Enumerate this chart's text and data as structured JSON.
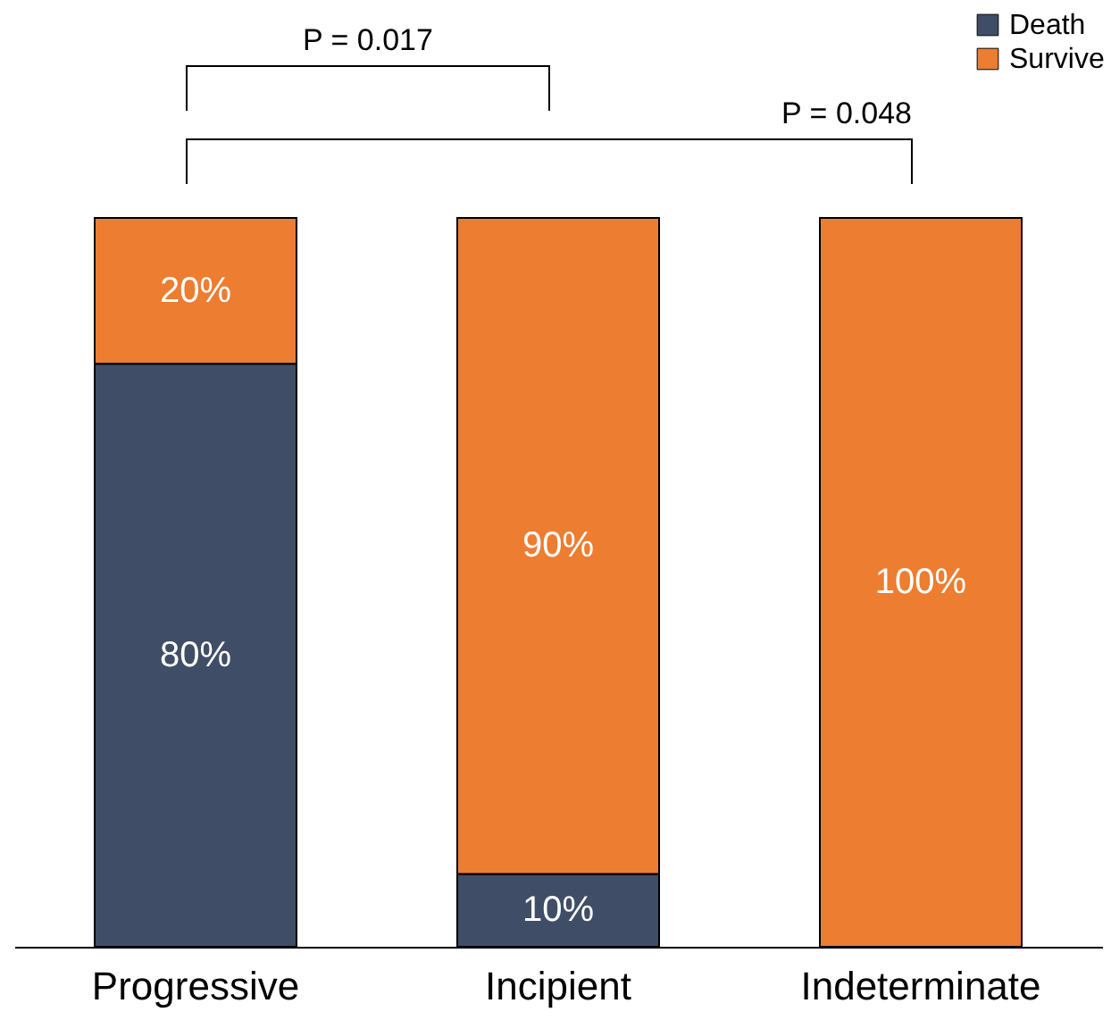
{
  "chart_data": {
    "type": "bar",
    "stacked": true,
    "categories": [
      "Progressive",
      "Incipient",
      "Indeterminate"
    ],
    "series": [
      {
        "name": "Death",
        "color": "#3f4e66",
        "values": [
          80,
          10,
          0
        ],
        "value_labels": [
          "80%",
          "10%",
          null
        ]
      },
      {
        "name": "Survive",
        "color": "#ed7d31",
        "values": [
          20,
          90,
          100
        ],
        "value_labels": [
          "20%",
          "90%",
          "100%"
        ]
      }
    ],
    "legend": "top right",
    "annotations": [
      "P = 0.017",
      "P = 0.048"
    ]
  }
}
